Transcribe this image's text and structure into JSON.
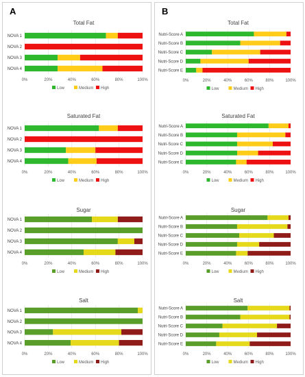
{
  "panels": [
    {
      "letter": "A"
    },
    {
      "letter": "B"
    }
  ],
  "legend": [
    "Low",
    "Medium",
    "High"
  ],
  "colors": {
    "standard": [
      "#2db82d",
      "#ffcc1a",
      "#ee1111"
    ],
    "shaded": [
      "#5a9e2a",
      "#e6d91c",
      "#8f1c18"
    ]
  },
  "chart_data": [
    {
      "type": "bar",
      "orientation": "horizontal",
      "stacked": true,
      "title": "Total Fat",
      "categories": [
        "NOVA 1",
        "NOVA 2",
        "NOVA 3",
        "NOVA 4"
      ],
      "xticks": [
        "0%",
        "20%",
        "40%",
        "60%",
        "80%",
        "100%"
      ],
      "xlim": [
        0,
        100
      ],
      "series": [
        {
          "name": "Low",
          "values": [
            69,
            0,
            28,
            28
          ]
        },
        {
          "name": "Medium",
          "values": [
            10,
            0,
            19,
            38
          ]
        },
        {
          "name": "High",
          "values": [
            21,
            100,
            53,
            34
          ]
        }
      ],
      "legend_position": "bottom"
    },
    {
      "type": "bar",
      "orientation": "horizontal",
      "stacked": true,
      "title": "Total Fat",
      "categories": [
        "Nutri-Score A",
        "Nutri-Score B",
        "Nutri-Score C",
        "Nutri-Score D",
        "Nutri-Score E"
      ],
      "xticks": [
        "0%",
        "20%",
        "40%",
        "60%",
        "80%",
        "100%"
      ],
      "xlim": [
        0,
        100
      ],
      "series": [
        {
          "name": "Low",
          "values": [
            65,
            52,
            25,
            14,
            10
          ]
        },
        {
          "name": "Medium",
          "values": [
            31,
            38,
            46,
            46,
            6
          ]
        },
        {
          "name": "High",
          "values": [
            4,
            10,
            29,
            40,
            84
          ]
        }
      ],
      "legend_position": "bottom"
    },
    {
      "type": "bar",
      "orientation": "horizontal",
      "stacked": true,
      "title": "Saturated Fat",
      "categories": [
        "NOVA 1",
        "NOVA 2",
        "NOVA 3",
        "NOVA 4"
      ],
      "xticks": [
        "0%",
        "20%",
        "40%",
        "60%",
        "80%",
        "100%"
      ],
      "xlim": [
        0,
        100
      ],
      "series": [
        {
          "name": "Low",
          "values": [
            63,
            0,
            35,
            37
          ]
        },
        {
          "name": "Medium",
          "values": [
            16,
            0,
            25,
            24
          ]
        },
        {
          "name": "High",
          "values": [
            21,
            100,
            40,
            39
          ]
        }
      ],
      "legend_position": "bottom"
    },
    {
      "type": "bar",
      "orientation": "horizontal",
      "stacked": true,
      "title": "Saturated Fat",
      "categories": [
        "Nutri-Score A",
        "Nutri-Score B",
        "Nutri-Score C",
        "Nutri-Score D",
        "Nutri-Score E"
      ],
      "xticks": [
        "0%",
        "20%",
        "40%",
        "60%",
        "80%",
        "100%"
      ],
      "xlim": [
        0,
        100
      ],
      "series": [
        {
          "name": "Low",
          "values": [
            79,
            49,
            49,
            49,
            48
          ]
        },
        {
          "name": "Medium",
          "values": [
            19,
            46,
            34,
            20,
            10
          ]
        },
        {
          "name": "High",
          "values": [
            2,
            5,
            17,
            31,
            42
          ]
        }
      ],
      "legend_position": "bottom"
    },
    {
      "type": "bar",
      "orientation": "horizontal",
      "stacked": true,
      "title": "Sugar",
      "categories": [
        "NOVA 1",
        "NOVA 2",
        "NOVA 3",
        "NOVA 4"
      ],
      "xticks": [
        "0%",
        "20%",
        "40%",
        "60%",
        "80%",
        "100%"
      ],
      "xlim": [
        0,
        100
      ],
      "series": [
        {
          "name": "Low",
          "values": [
            57,
            100,
            79,
            50
          ]
        },
        {
          "name": "Medium",
          "values": [
            22,
            0,
            14,
            27
          ]
        },
        {
          "name": "High",
          "values": [
            21,
            0,
            7,
            23
          ]
        }
      ],
      "legend_position": "bottom"
    },
    {
      "type": "bar",
      "orientation": "horizontal",
      "stacked": true,
      "title": "Sugar",
      "categories": [
        "Nutri-Score A",
        "Nutri-Score B",
        "Nutri-Score C",
        "Nutri-Score D",
        "Nutri-Score E"
      ],
      "xticks": [
        "0%",
        "20%",
        "40%",
        "60%",
        "80%",
        "100%"
      ],
      "xlim": [
        0,
        100
      ],
      "series": [
        {
          "name": "Low",
          "values": [
            78,
            49,
            51,
            49,
            48
          ]
        },
        {
          "name": "Medium",
          "values": [
            20,
            48,
            33,
            21,
            11
          ]
        },
        {
          "name": "High",
          "values": [
            2,
            3,
            16,
            30,
            41
          ]
        }
      ],
      "legend_position": "bottom"
    },
    {
      "type": "bar",
      "orientation": "horizontal",
      "stacked": true,
      "title": "Salt",
      "categories": [
        "NOVA 1",
        "NOVA 2",
        "NOVA 3",
        "NOVA 4"
      ],
      "xticks": [
        "0%",
        "20%",
        "40%",
        "60%",
        "80%",
        "100%"
      ],
      "xlim": [
        0,
        100
      ],
      "series": [
        {
          "name": "Low",
          "values": [
            96,
            100,
            24,
            39
          ]
        },
        {
          "name": "Medium",
          "values": [
            4,
            0,
            58,
            41
          ]
        },
        {
          "name": "High",
          "values": [
            0,
            0,
            18,
            20
          ]
        }
      ],
      "legend_position": "bottom"
    },
    {
      "type": "bar",
      "orientation": "horizontal",
      "stacked": true,
      "title": "Salt",
      "categories": [
        "Nutri-Score A",
        "Nutri-Score B",
        "Nutri-Score C",
        "Nutri-Score D",
        "Nutri-Score E"
      ],
      "xticks": [
        "0%",
        "20%",
        "40%",
        "60%",
        "80%",
        "100%"
      ],
      "xlim": [
        0,
        100
      ],
      "series": [
        {
          "name": "Low",
          "values": [
            59,
            52,
            35,
            32,
            29
          ]
        },
        {
          "name": "Medium",
          "values": [
            40,
            47,
            52,
            36,
            32
          ]
        },
        {
          "name": "High",
          "values": [
            1,
            1,
            13,
            32,
            39
          ]
        }
      ],
      "legend_position": "bottom"
    }
  ]
}
